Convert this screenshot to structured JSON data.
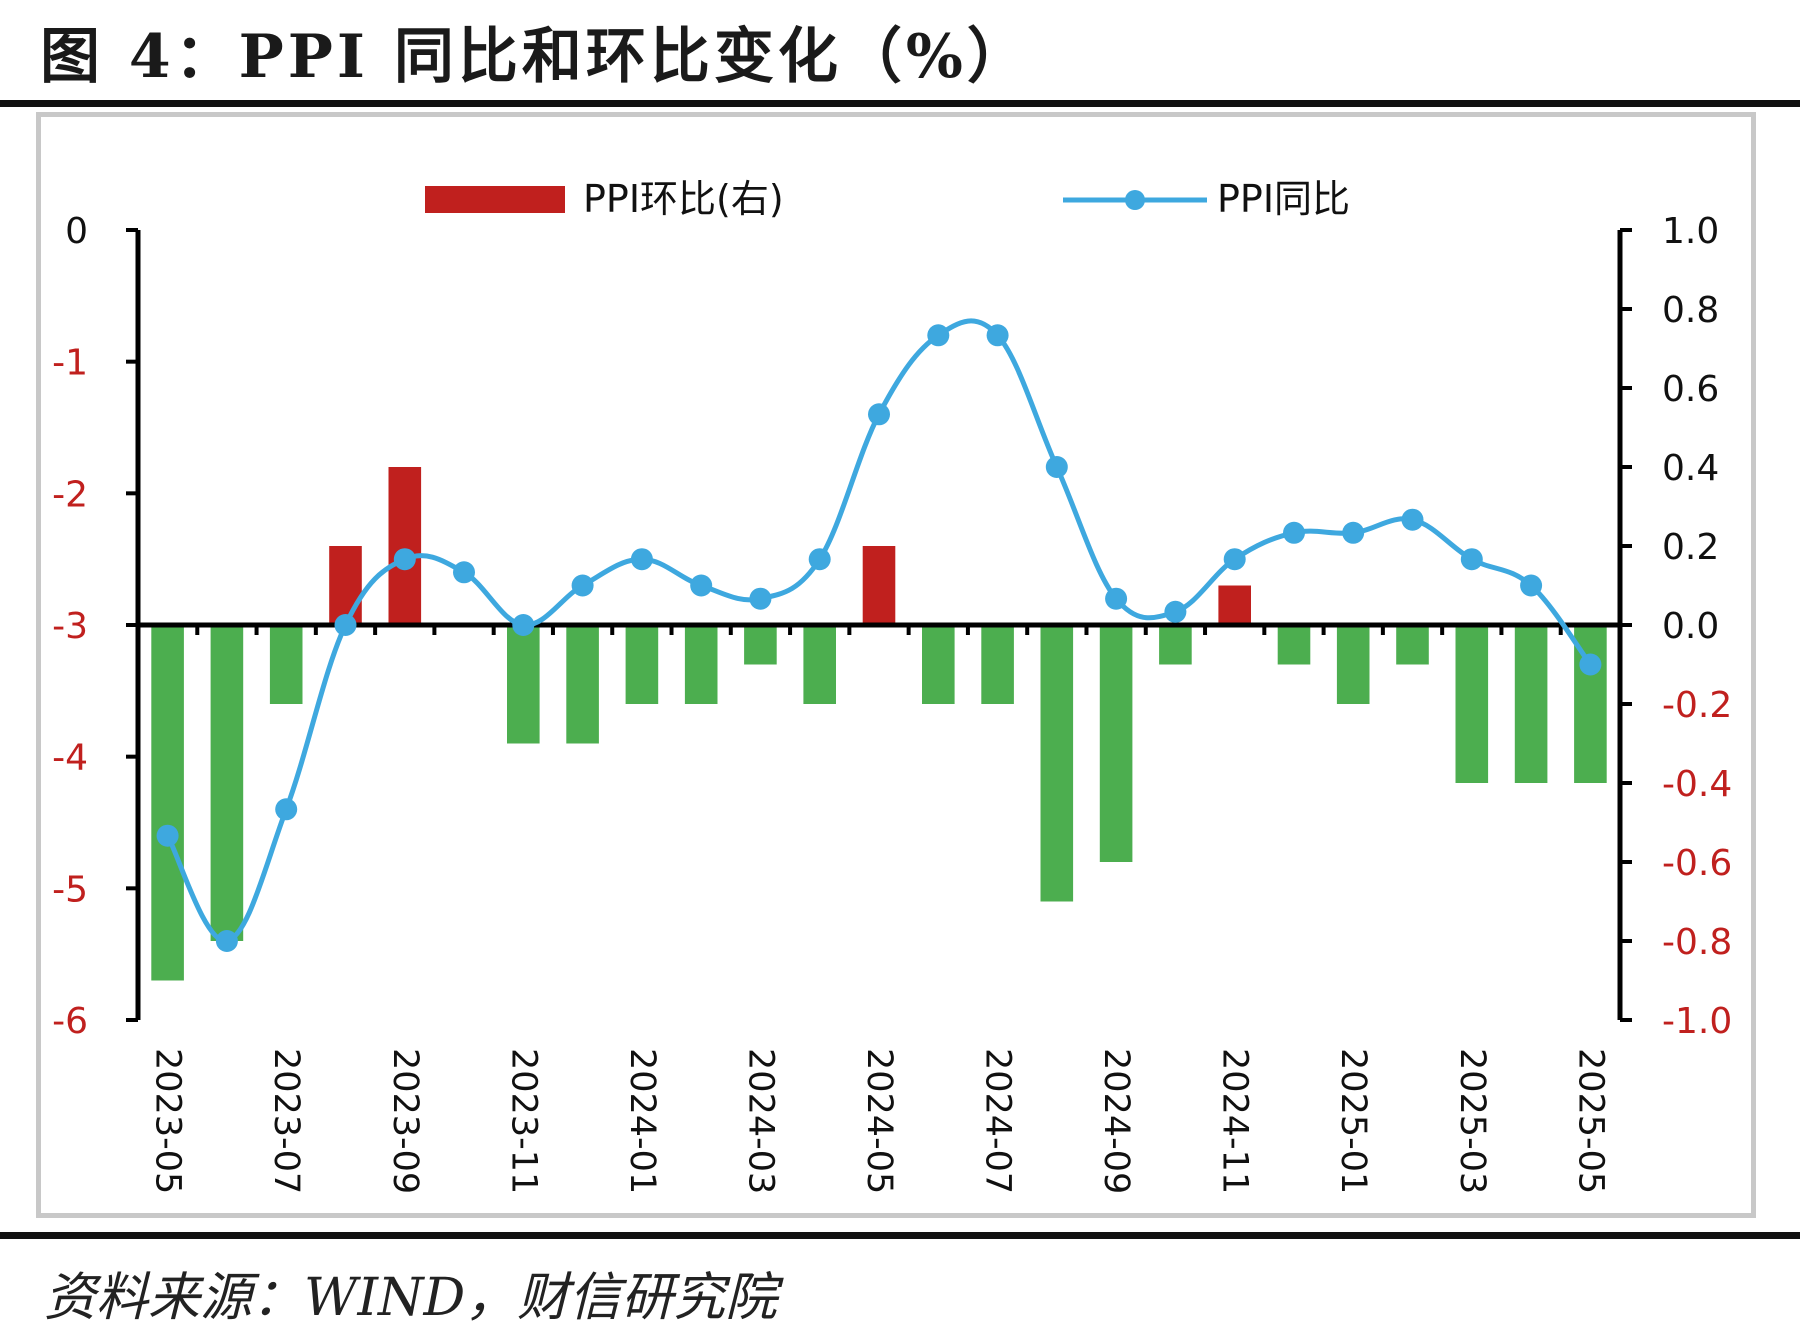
{
  "figure": {
    "title": "图 4：PPI 同比和环比变化（%）",
    "source": "资料来源：WIND，财信研究院"
  },
  "colors": {
    "bar_positive": "#c0201e",
    "bar_negative": "#4cae4f",
    "line": "#3ea8df",
    "axis": "#000000",
    "tick_negative": "#c0201e",
    "tick_positive": "#111111"
  },
  "chart_data": {
    "type": "bar",
    "title": "",
    "x": [
      "2023-05",
      "2023-06",
      "2023-07",
      "2023-08",
      "2023-09",
      "2023-10",
      "2023-11",
      "2023-12",
      "2024-01",
      "2024-02",
      "2024-03",
      "2024-04",
      "2024-05",
      "2024-06",
      "2024-07",
      "2024-08",
      "2024-09",
      "2024-10",
      "2024-11",
      "2024-12",
      "2025-01",
      "2025-02",
      "2025-03",
      "2025-04",
      "2025-05"
    ],
    "x_tick_labels": [
      "2023-05",
      "2023-07",
      "2023-09",
      "2023-11",
      "2024-01",
      "2024-03",
      "2024-05",
      "2024-07",
      "2024-09",
      "2024-11",
      "2025-01",
      "2025-03",
      "2025-05"
    ],
    "legend_placement": "top-center",
    "series": [
      {
        "name": "PPI环比(右)",
        "type": "bar",
        "axis": "right",
        "values": [
          -0.9,
          -0.8,
          -0.2,
          0.2,
          0.4,
          0.0,
          -0.3,
          -0.3,
          -0.2,
          -0.2,
          -0.1,
          -0.2,
          0.2,
          -0.2,
          -0.2,
          -0.7,
          -0.6,
          -0.1,
          0.1,
          -0.1,
          -0.2,
          -0.1,
          -0.4,
          -0.4,
          -0.4
        ]
      },
      {
        "name": "PPI同比",
        "type": "line",
        "axis": "left",
        "values": [
          -4.6,
          -5.4,
          -4.4,
          -3.0,
          -2.5,
          -2.6,
          -3.0,
          -2.7,
          -2.5,
          -2.7,
          -2.8,
          -2.5,
          -1.4,
          -0.8,
          -0.8,
          -1.8,
          -2.8,
          -2.9,
          -2.5,
          -2.3,
          -2.3,
          -2.2,
          -2.5,
          -2.7,
          -3.3
        ]
      }
    ],
    "y_left": {
      "ylim": [
        -6,
        0
      ],
      "ticks": [
        "0",
        "-1",
        "-2",
        "-3",
        "-4",
        "-5",
        "-6"
      ]
    },
    "y_right": {
      "ylim": [
        -1.0,
        1.0
      ],
      "ticks": [
        "1.0",
        "0.8",
        "0.6",
        "0.4",
        "0.2",
        "0.0",
        "-0.2",
        "-0.4",
        "-0.6",
        "-0.8",
        "-1.0"
      ]
    },
    "grid": false
  }
}
